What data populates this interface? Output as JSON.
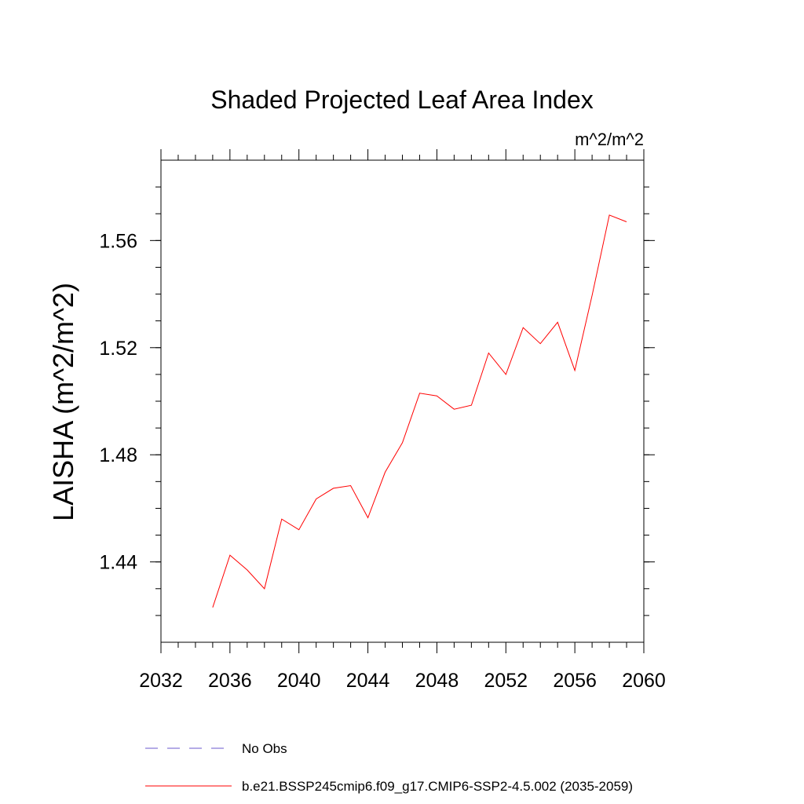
{
  "chart_data": {
    "type": "line",
    "title": "Shaded Projected Leaf Area Index",
    "units_label": "m^2/m^2",
    "ylabel": "LAISHA  (m^2/m^2)",
    "xlabel": "",
    "xlim": [
      2032,
      2060
    ],
    "ylim": [
      1.41,
      1.59
    ],
    "x_ticks": [
      2032,
      2036,
      2040,
      2044,
      2048,
      2052,
      2056,
      2060
    ],
    "y_ticks": [
      1.44,
      1.48,
      1.52,
      1.56
    ],
    "y_tick_labels": [
      "1.44",
      "1.48",
      "1.52",
      "1.56"
    ],
    "grid": false,
    "legend_position": "bottom",
    "legend": [
      {
        "label": "No Obs",
        "color": "#6a5acd",
        "dash": true
      },
      {
        "label": "b.e21.BSSP245cmip6.f09_g17.CMIP6-SSP2-4.5.002 (2035-2059)",
        "color": "#ff0000",
        "dash": false
      }
    ],
    "series": [
      {
        "name": "b.e21.BSSP245cmip6.f09_g17.CMIP6-SSP2-4.5.002 (2035-2059)",
        "color": "#ff0000",
        "x": [
          2035,
          2036,
          2037,
          2038,
          2039,
          2040,
          2041,
          2042,
          2043,
          2044,
          2045,
          2046,
          2047,
          2048,
          2049,
          2050,
          2051,
          2052,
          2053,
          2054,
          2055,
          2056,
          2057,
          2058,
          2059
        ],
        "y": [
          1.423,
          1.4425,
          1.437,
          1.43,
          1.456,
          1.452,
          1.4635,
          1.4675,
          1.4685,
          1.4565,
          1.4735,
          1.4845,
          1.503,
          1.502,
          1.497,
          1.4985,
          1.518,
          1.51,
          1.5275,
          1.5215,
          1.5295,
          1.5115,
          1.5395,
          1.5695,
          1.567
        ]
      }
    ]
  }
}
